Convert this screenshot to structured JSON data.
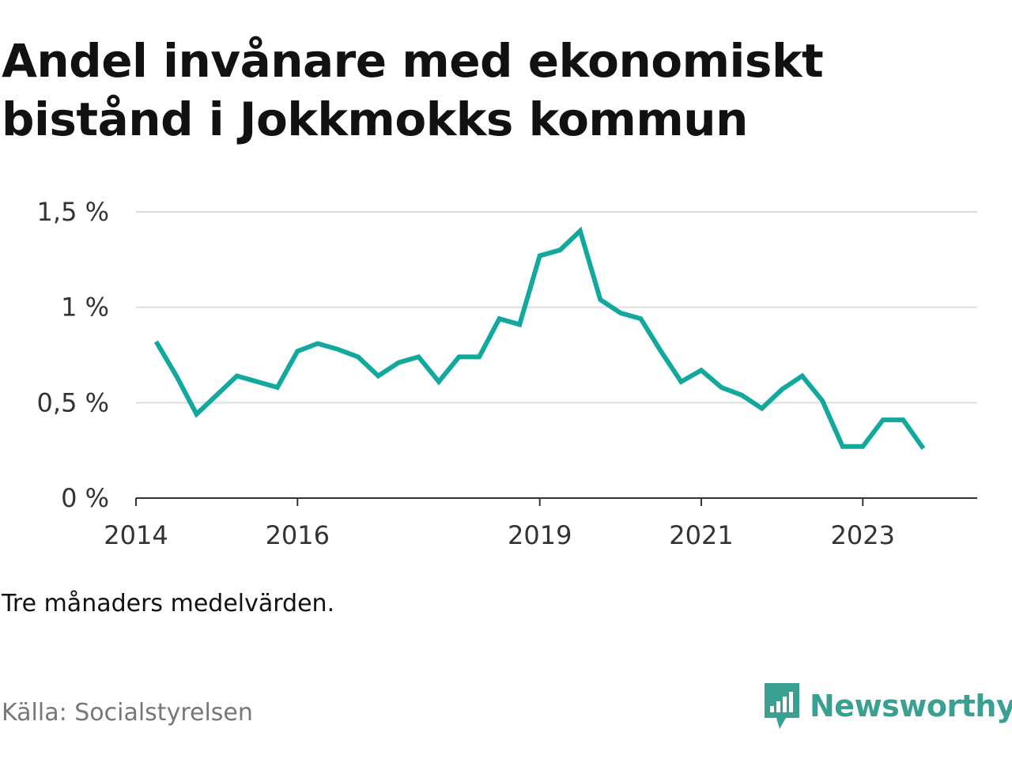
{
  "title": "Andel invånare med ekonomiskt bistånd i Jokkmokks kommun",
  "note": "Tre månaders medelvärden.",
  "source": "Källa: Socialstyrelsen",
  "brand": {
    "name": "Newsworthy",
    "icon": "newsworthy-logo-icon",
    "color": "#3aa192"
  },
  "chart_data": {
    "type": "line",
    "title": "Andel invånare med ekonomiskt bistånd i Jokkmokks kommun",
    "xlabel": "",
    "ylabel": "",
    "line_color": "#13a89e",
    "grid": true,
    "y_ticks": [
      {
        "value": 0,
        "label": "0 %"
      },
      {
        "value": 0.5,
        "label": "0,5 %"
      },
      {
        "value": 1,
        "label": "1 %"
      },
      {
        "value": 1.5,
        "label": "1,5 %"
      }
    ],
    "ylim": [
      0,
      1.5
    ],
    "xlim": [
      "2014-01",
      "2024-06"
    ],
    "x_ticks": [
      "2014",
      "2016",
      "2019",
      "2021",
      "2023"
    ],
    "x": [
      "2014-04",
      "2014-07",
      "2014-10",
      "2015-01",
      "2015-04",
      "2015-07",
      "2015-10",
      "2016-01",
      "2016-04",
      "2016-07",
      "2016-10",
      "2017-01",
      "2017-04",
      "2017-07",
      "2017-10",
      "2018-01",
      "2018-04",
      "2018-07",
      "2018-10",
      "2019-01",
      "2019-04",
      "2019-07",
      "2019-10",
      "2020-01",
      "2020-04",
      "2020-07",
      "2020-10",
      "2021-01",
      "2021-04",
      "2021-07",
      "2021-10",
      "2022-01",
      "2022-04",
      "2022-07",
      "2022-10",
      "2023-01",
      "2023-04",
      "2023-07",
      "2023-10"
    ],
    "series": [
      {
        "values": [
          0.82,
          0.64,
          0.44,
          0.54,
          0.64,
          0.61,
          0.58,
          0.77,
          0.81,
          0.78,
          0.74,
          0.64,
          0.71,
          0.74,
          0.61,
          0.74,
          0.74,
          0.94,
          0.91,
          1.27,
          1.3,
          1.4,
          1.04,
          0.97,
          0.94,
          0.77,
          0.61,
          0.67,
          0.58,
          0.54,
          0.47,
          0.57,
          0.64,
          0.51,
          0.27,
          0.27,
          0.41,
          0.41,
          0.26
        ]
      }
    ]
  }
}
